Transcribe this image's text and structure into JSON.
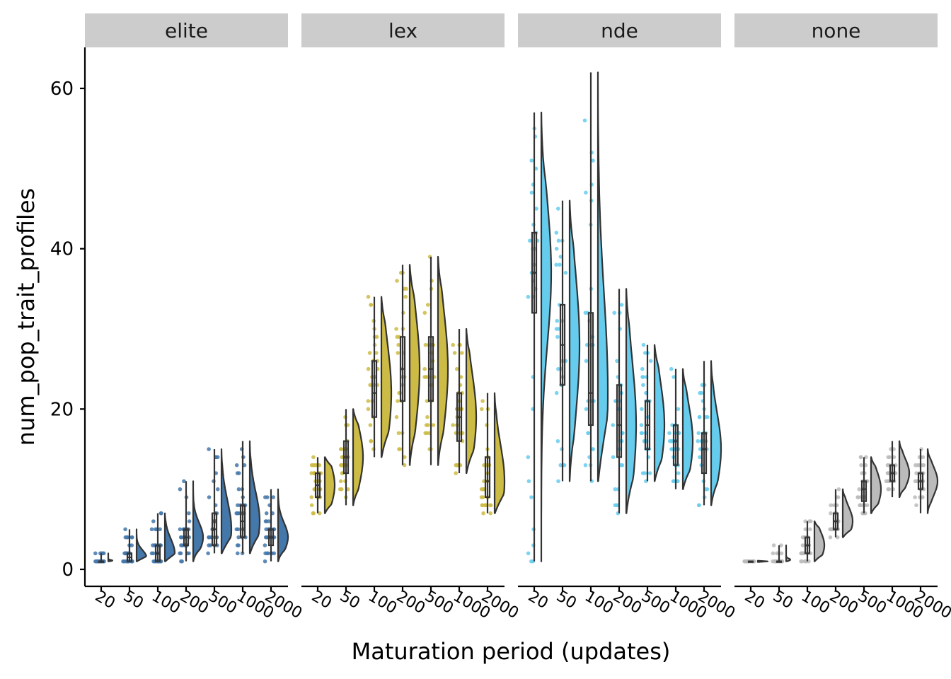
{
  "chart_data": {
    "type": "raincloud",
    "xlabel": "Maturation period (updates)",
    "ylabel": "num_pop_trait_profiles",
    "ylim": [
      -2,
      65
    ],
    "yticks": [
      0,
      20,
      40,
      60
    ],
    "grid": false,
    "categories": [
      "20",
      "50",
      "100",
      "200",
      "500",
      "1000",
      "2000"
    ],
    "facets": [
      {
        "name": "elite",
        "color": "#4477AA",
        "stats": [
          [
            1,
            1,
            1,
            1,
            2
          ],
          [
            1,
            1,
            1.5,
            2,
            5
          ],
          [
            1,
            1,
            2,
            3,
            7
          ],
          [
            1,
            3,
            4,
            5,
            11
          ],
          [
            2,
            3,
            5,
            7,
            15
          ],
          [
            2,
            4,
            6,
            8,
            16
          ],
          [
            1,
            3,
            4,
            5,
            10
          ]
        ]
      },
      {
        "name": "lex",
        "color": "#CCBB44",
        "stats": [
          [
            7,
            9,
            10.5,
            12,
            14
          ],
          [
            8,
            12,
            14,
            16,
            20
          ],
          [
            14,
            19,
            22,
            26,
            34
          ],
          [
            13,
            21,
            25,
            29,
            38
          ],
          [
            13,
            21,
            25,
            29,
            39
          ],
          [
            12,
            16,
            19,
            22,
            30
          ],
          [
            7,
            9,
            11,
            14,
            22
          ]
        ]
      },
      {
        "name": "nde",
        "color": "#66CCEE",
        "stats": [
          [
            1,
            32,
            37,
            42,
            57
          ],
          [
            11,
            23,
            28,
            33,
            46
          ],
          [
            11,
            18,
            22,
            32,
            62
          ],
          [
            7,
            14,
            18,
            23,
            35
          ],
          [
            11,
            15,
            18,
            21,
            28
          ],
          [
            10,
            13,
            16,
            18,
            25
          ],
          [
            8,
            12,
            15,
            17,
            26
          ]
        ]
      },
      {
        "name": "none",
        "color": "#BBBBBB",
        "stats": [
          [
            1,
            1,
            1,
            1,
            1
          ],
          [
            1,
            1,
            1,
            1,
            3
          ],
          [
            1,
            2,
            3,
            4,
            6
          ],
          [
            4,
            5,
            6,
            7,
            10
          ],
          [
            7,
            8.5,
            10,
            11,
            14
          ],
          [
            9,
            11,
            12,
            13,
            16
          ],
          [
            7,
            10,
            11,
            12,
            15
          ]
        ]
      }
    ],
    "stats_format": [
      "min",
      "q1",
      "median",
      "q3",
      "max"
    ]
  }
}
